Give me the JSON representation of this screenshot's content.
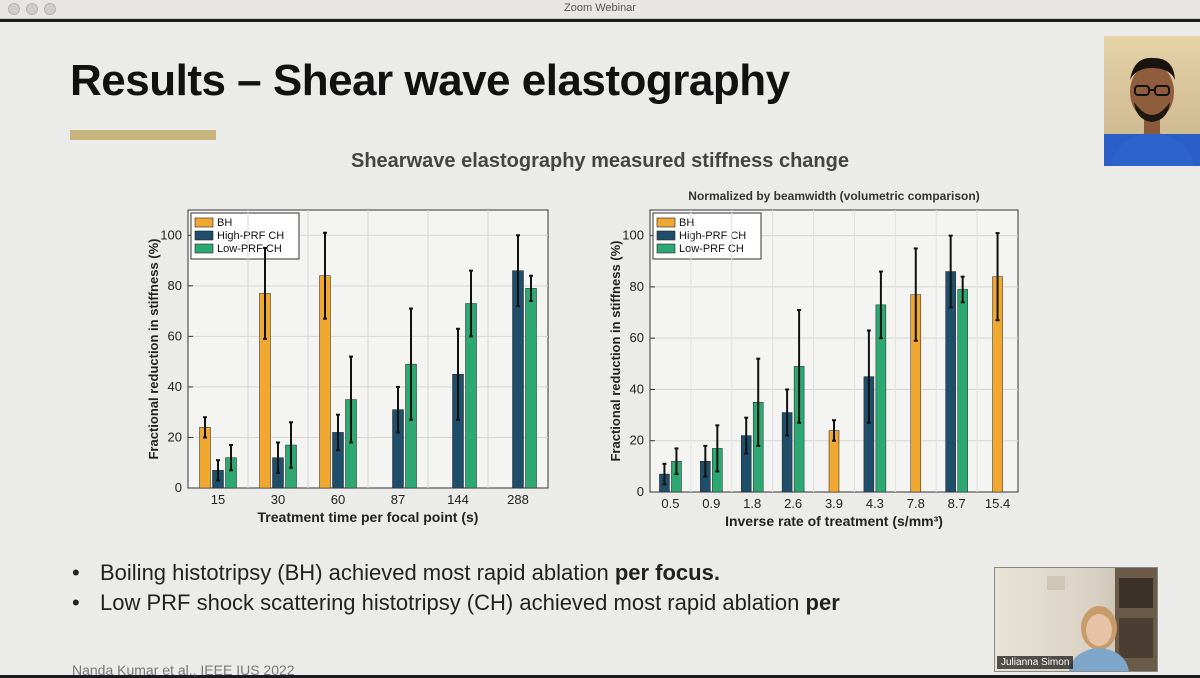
{
  "window": {
    "title": "Zoom Webinar"
  },
  "slide": {
    "title": "Results – Shear wave elastography",
    "chart_heading": "Shearwave elastography measured stiffness change",
    "bullets": [
      {
        "text_plain": "Boiling histotripsy (BH) achieved most rapid ablation ",
        "text_bold": "per focus."
      },
      {
        "text_plain": "Low PRF shock scattering histotripsy (CH) achieved most rapid ablation ",
        "text_bold": "per"
      }
    ],
    "credit": "Nanda Kumar et al., IEEE IUS 2022"
  },
  "participants": [
    {
      "name": ""
    },
    {
      "name": "Julianna Simon"
    }
  ],
  "colors": {
    "BH": "#f0a830",
    "High-PRF CH": "#1f4e6b",
    "Low-PRF CH": "#2ea873"
  },
  "chart_data": [
    {
      "type": "bar",
      "title": "",
      "xlabel": "Treatment time per focal point (s)",
      "ylabel": "Fractional reduction in stiffness (%)",
      "ylim": [
        0,
        110
      ],
      "yticks": [
        0,
        20,
        40,
        60,
        80,
        100
      ],
      "grid": true,
      "legend": "top-left",
      "categories": [
        "15",
        "30",
        "60",
        "87",
        "144",
        "288"
      ],
      "series": [
        {
          "name": "BH",
          "values": [
            24,
            77,
            84,
            null,
            null,
            null
          ],
          "errors": [
            4,
            18,
            17,
            null,
            null,
            null
          ]
        },
        {
          "name": "High-PRF CH",
          "values": [
            7,
            12,
            22,
            31,
            45,
            86
          ],
          "errors": [
            4,
            6,
            7,
            9,
            18,
            14
          ]
        },
        {
          "name": "Low-PRF CH",
          "values": [
            12,
            17,
            35,
            49,
            73,
            79
          ],
          "errors": [
            5,
            9,
            17,
            22,
            13,
            5
          ]
        }
      ]
    },
    {
      "type": "bar",
      "title": "Normalized by beamwidth (volumetric comparison)",
      "xlabel": "Inverse rate of treatment (s/mm³)",
      "ylabel": "Fractional reduction in stiffness (%)",
      "ylim": [
        0,
        110
      ],
      "yticks": [
        0,
        20,
        40,
        60,
        80,
        100
      ],
      "grid": true,
      "legend": "top-left",
      "x": [
        0.5,
        0.9,
        1.8,
        2.6,
        3.9,
        4.3,
        7.8,
        8.7,
        15.4
      ],
      "ticks": [
        "0.5",
        "0.9",
        "1.8",
        "2.6",
        "3.9",
        "4.3",
        "7.8",
        "8.7",
        "15.4"
      ],
      "series": [
        {
          "name": "BH",
          "points": [
            [
              3.9,
              24,
              4
            ],
            [
              7.8,
              77,
              18
            ],
            [
              15.4,
              84,
              17
            ]
          ]
        },
        {
          "name": "High-PRF CH",
          "points": [
            [
              0.5,
              7,
              4
            ],
            [
              0.9,
              12,
              6
            ],
            [
              1.8,
              22,
              7
            ],
            [
              2.6,
              31,
              9
            ],
            [
              4.3,
              45,
              18
            ],
            [
              8.7,
              86,
              14
            ]
          ]
        },
        {
          "name": "Low-PRF CH",
          "points": [
            [
              0.5,
              12,
              5
            ],
            [
              0.9,
              17,
              9
            ],
            [
              1.8,
              35,
              17
            ],
            [
              2.6,
              49,
              22
            ],
            [
              4.3,
              73,
              13
            ],
            [
              8.7,
              79,
              5
            ]
          ]
        }
      ]
    }
  ]
}
